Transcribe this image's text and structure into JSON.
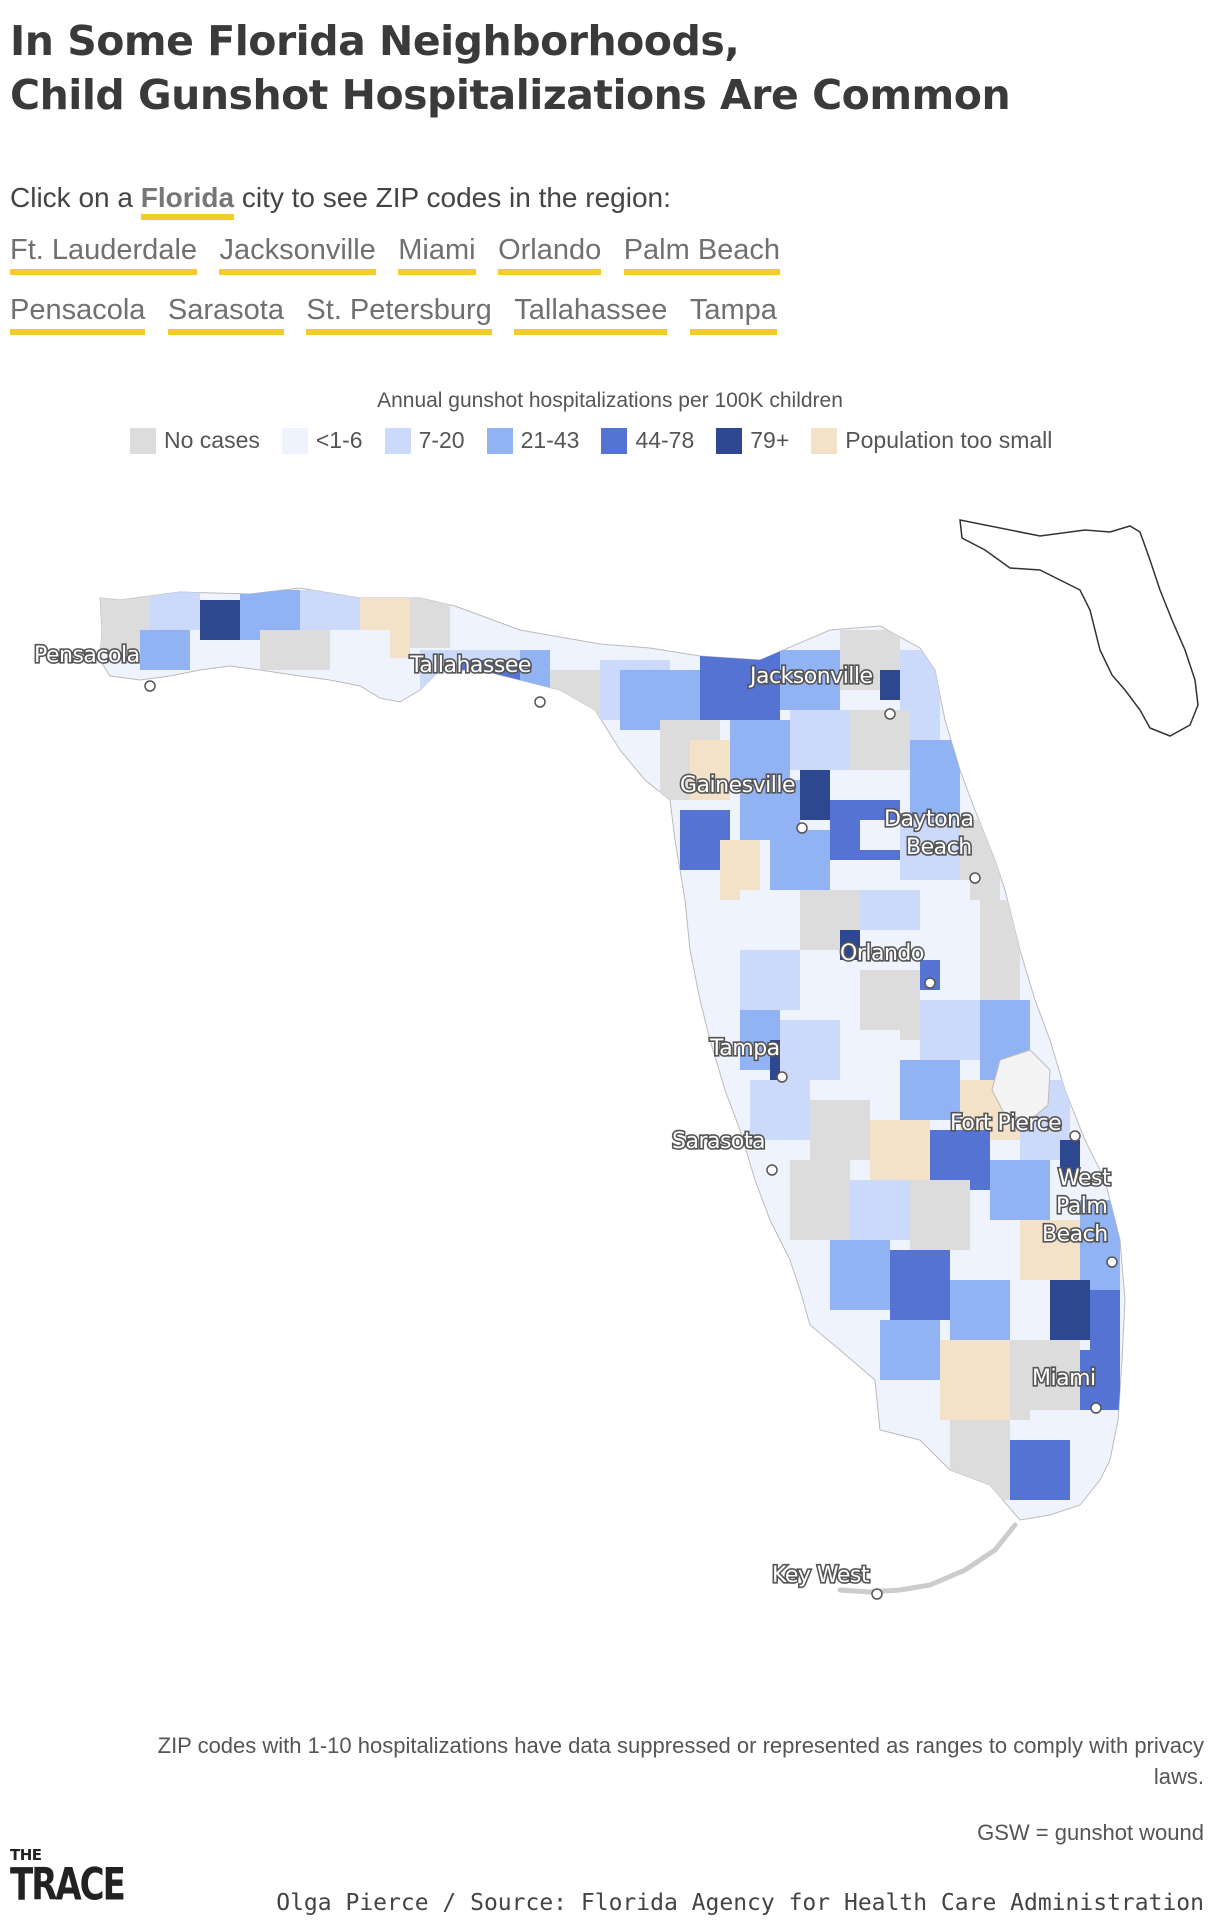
{
  "title": {
    "line1": "In Some Florida Neighborhoods,",
    "line2": "Child Gunshot Hospitalizations Are Common"
  },
  "intro": {
    "prefix": "Click on a",
    "state": "Florida",
    "suffix": "city to see ZIP codes in the region:"
  },
  "cities_row1": [
    "Ft. Lauderdale",
    "Jacksonville",
    "Miami",
    "Orlando",
    "Palm Beach"
  ],
  "cities_row2": [
    "Pensacola",
    "Sarasota",
    "St. Petersburg",
    "Tallahassee",
    "Tampa"
  ],
  "legend": {
    "title": "Annual gunshot hospitalizations per 100K children",
    "items": [
      {
        "label": "No cases",
        "color": "#dcdcdc"
      },
      {
        "label": "<1-6",
        "color": "#eef3fe"
      },
      {
        "label": "7-20",
        "color": "#cbdafa"
      },
      {
        "label": "21-43",
        "color": "#92b3f3"
      },
      {
        "label": "44-78",
        "color": "#5573d2"
      },
      {
        "label": "79+",
        "color": "#2e4791"
      },
      {
        "label": "Population too small",
        "color": "#f3e1c8"
      }
    ]
  },
  "map": {
    "city_labels": {
      "pensacola": "Pensacola",
      "tallahassee": "Tallahassee",
      "jacksonville": "Jacksonville",
      "gainesville": "Gainesville",
      "daytona1": "Daytona",
      "daytona2": "Beach",
      "orlando": "Orlando",
      "tampa": "Tampa",
      "sarasota": "Sarasota",
      "fortpierce": "Fort Pierce",
      "wpb1": "West",
      "wpb2": "Palm",
      "wpb3": "Beach",
      "miami": "Miami",
      "keywest": "Key West"
    }
  },
  "footnote": "ZIP codes with 1-10 hospitalizations have data suppressed or represented as ranges to comply with privacy laws.",
  "gsw_note": "GSW = gunshot wound",
  "logo": {
    "the": "THE",
    "trace": "TRACE"
  },
  "credit": "Olga Pierce / Source: Florida Agency for Health Care Administration"
}
